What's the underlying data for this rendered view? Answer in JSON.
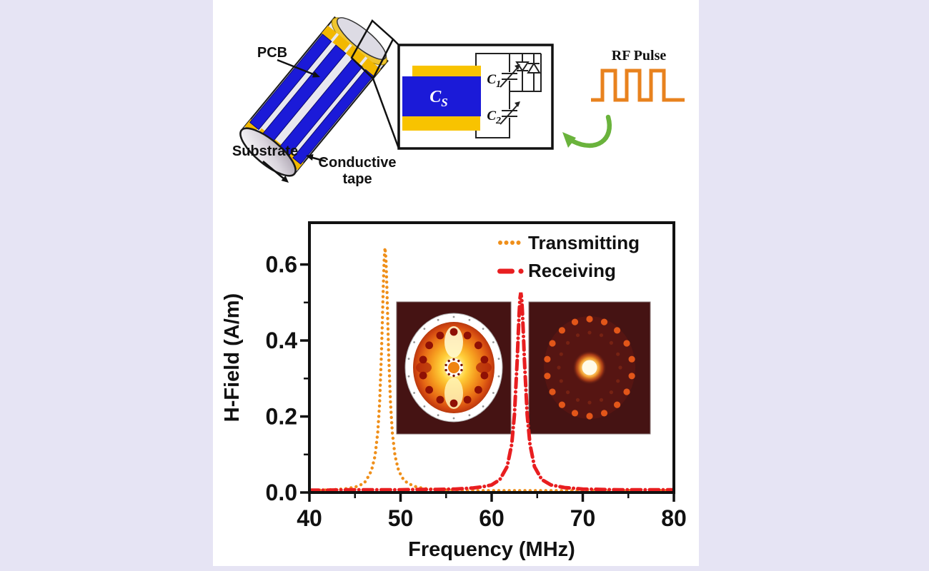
{
  "colors": {
    "background": "#e6e4f4",
    "panel": "#ffffff",
    "pcb_blue": "#1b1ad8",
    "tape_yellow": "#f8c300",
    "axis_black": "#111111",
    "transmitting_orange": "#ef8f1a",
    "receiving_red": "#e81e20",
    "rf_pulse_orange": "#e8821e",
    "rotation_green": "#6ab33c",
    "inset_background": "#451313"
  },
  "diagram": {
    "pcb_label": "PCB",
    "substrate_label": "Substrate",
    "conductive_tape_line1": "Conductive",
    "conductive_tape_line2": "tape",
    "rf_pulse_label": "RF Pulse",
    "circuit": {
      "cs_symbol": "C",
      "cs_subscript": "S",
      "c1_symbol": "C",
      "c1_subscript": "1",
      "c2_symbol": "C",
      "c2_subscript": "2"
    }
  },
  "chart_data": {
    "type": "line",
    "title": "",
    "xlabel": "Frequency (MHz)",
    "ylabel": "H-Field (A/m)",
    "xlim": [
      40,
      80
    ],
    "ylim": [
      0,
      0.71
    ],
    "xticks": [
      40,
      50,
      60,
      70,
      80
    ],
    "xtick_labels": [
      "40",
      "50",
      "60",
      "70",
      "80"
    ],
    "xticks_minor": [
      45,
      55,
      65,
      75
    ],
    "yticks": [
      0,
      0.2,
      0.4,
      0.6
    ],
    "ytick_labels": [
      "0.0",
      "0.2",
      "0.4",
      "0.6"
    ],
    "yticks_minor": [
      0.1,
      0.3,
      0.5
    ],
    "grid": false,
    "legend_position": "upper-right-inside",
    "legend": [
      {
        "label": "Transmitting",
        "style": "dotted",
        "color": "#ef8f1a"
      },
      {
        "label": "Receiving",
        "style": "dash-dot",
        "color": "#e81e20"
      }
    ],
    "series": [
      {
        "name": "Transmitting",
        "style": "dotted",
        "color": "#ef8f1a",
        "peak_mhz": 48.3,
        "peak_a_per_m": 0.64,
        "points": [
          [
            40,
            0.006
          ],
          [
            41,
            0.006
          ],
          [
            42,
            0.007
          ],
          [
            43,
            0.008
          ],
          [
            44,
            0.01
          ],
          [
            45,
            0.014
          ],
          [
            46,
            0.024
          ],
          [
            46.3,
            0.035
          ],
          [
            46.8,
            0.057
          ],
          [
            47.2,
            0.096
          ],
          [
            47.5,
            0.158
          ],
          [
            47.7,
            0.234
          ],
          [
            47.9,
            0.362
          ],
          [
            48,
            0.447
          ],
          [
            48.1,
            0.539
          ],
          [
            48.2,
            0.614
          ],
          [
            48.3,
            0.644
          ],
          [
            48.4,
            0.614
          ],
          [
            48.5,
            0.539
          ],
          [
            48.6,
            0.447
          ],
          [
            48.7,
            0.362
          ],
          [
            48.9,
            0.234
          ],
          [
            49.1,
            0.158
          ],
          [
            49.4,
            0.096
          ],
          [
            49.8,
            0.057
          ],
          [
            50.3,
            0.035
          ],
          [
            50.8,
            0.024
          ],
          [
            51.8,
            0.014
          ],
          [
            52.8,
            0.01
          ],
          [
            53.8,
            0.008
          ],
          [
            54.8,
            0.007
          ],
          [
            56,
            0.006
          ],
          [
            58,
            0.005
          ],
          [
            60,
            0.005
          ],
          [
            62,
            0.005
          ],
          [
            64,
            0.005
          ],
          [
            66,
            0.005
          ],
          [
            68,
            0.005
          ],
          [
            70,
            0.005
          ],
          [
            72,
            0.005
          ],
          [
            74,
            0.005
          ],
          [
            76,
            0.005
          ],
          [
            78,
            0.005
          ],
          [
            80,
            0.005
          ]
        ]
      },
      {
        "name": "Receiving",
        "style": "dash-dot",
        "color": "#e81e20",
        "peak_mhz": 63.2,
        "peak_a_per_m": 0.53,
        "points": [
          [
            40,
            0.006
          ],
          [
            42,
            0.006
          ],
          [
            44,
            0.007
          ],
          [
            46,
            0.007
          ],
          [
            48,
            0.007
          ],
          [
            50,
            0.007
          ],
          [
            52,
            0.008
          ],
          [
            54,
            0.008
          ],
          [
            56,
            0.009
          ],
          [
            58,
            0.012
          ],
          [
            59,
            0.015
          ],
          [
            60,
            0.02
          ],
          [
            60.9,
            0.034
          ],
          [
            61.7,
            0.068
          ],
          [
            62.2,
            0.127
          ],
          [
            62.5,
            0.205
          ],
          [
            62.8,
            0.346
          ],
          [
            62.9,
            0.407
          ],
          [
            63,
            0.465
          ],
          [
            63.1,
            0.509
          ],
          [
            63.2,
            0.526
          ],
          [
            63.3,
            0.509
          ],
          [
            63.4,
            0.465
          ],
          [
            63.5,
            0.407
          ],
          [
            63.6,
            0.346
          ],
          [
            63.9,
            0.205
          ],
          [
            64.2,
            0.127
          ],
          [
            64.7,
            0.068
          ],
          [
            65.5,
            0.034
          ],
          [
            66.5,
            0.02
          ],
          [
            68,
            0.013
          ],
          [
            70,
            0.009
          ],
          [
            72,
            0.008
          ],
          [
            74,
            0.007
          ],
          [
            76,
            0.007
          ],
          [
            78,
            0.007
          ],
          [
            80,
            0.007
          ]
        ]
      }
    ],
    "insets": [
      {
        "name": "transmitting-field-map",
        "appearance": "bright circular field pattern"
      },
      {
        "name": "receiving-field-map",
        "appearance": "dim ring with bright center spot"
      }
    ]
  }
}
